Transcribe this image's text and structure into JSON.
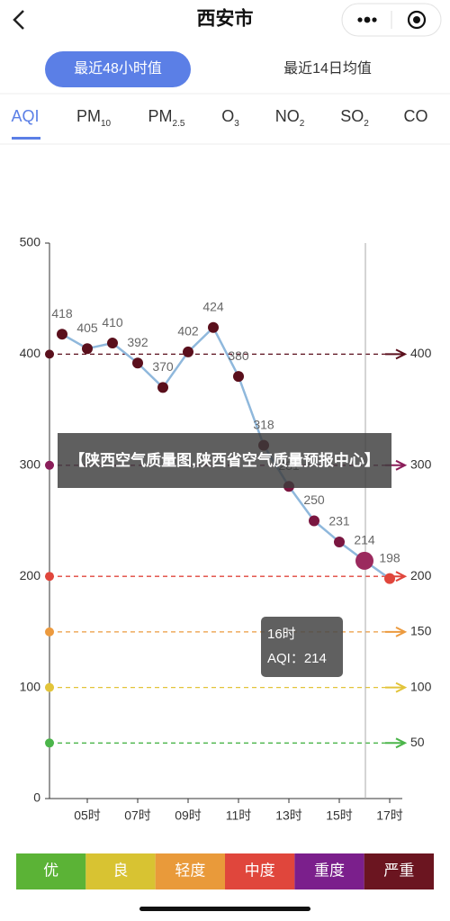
{
  "header": {
    "title": "西安市"
  },
  "tabs": [
    "最近48小时值",
    "最近14日均值"
  ],
  "pollutants": [
    {
      "main": "AQI"
    },
    {
      "main": "PM",
      "sub": "10"
    },
    {
      "main": "PM",
      "sub": "2.5"
    },
    {
      "main": "O",
      "sub": "3"
    },
    {
      "main": "NO",
      "sub": "2"
    },
    {
      "main": "SO",
      "sub": "2"
    },
    {
      "main": "CO"
    }
  ],
  "chart_data": {
    "type": "line",
    "categories": [
      null,
      "05时",
      null,
      "07时",
      null,
      "09时",
      null,
      "11时",
      null,
      "13时",
      null,
      "15时",
      null,
      "17时"
    ],
    "series": [
      {
        "name": "AQI",
        "color": "#8fb8dc",
        "values": [
          418,
          405,
          410,
          392,
          370,
          402,
          424,
          380,
          318,
          281,
          250,
          231,
          214,
          198
        ],
        "colors": [
          "#5a0f1c",
          "#5a0f1c",
          "#5a0f1c",
          "#5a0f1c",
          "#5a0f1c",
          "#5a0f1c",
          "#5a0f1c",
          "#5a0f1c",
          "#5a0f1c",
          "#7a1640",
          "#7a1640",
          "#7a1640",
          "#9b2a5e",
          "#e0463c"
        ]
      }
    ],
    "ylim": [
      0,
      500
    ],
    "yticks": [
      0,
      100,
      200,
      300,
      400,
      500
    ],
    "thresholds": [
      {
        "value": 400,
        "color": "#5a0f1c"
      },
      {
        "value": 300,
        "color": "#8b1e5a"
      },
      {
        "value": 200,
        "color": "#e0463c"
      },
      {
        "value": 150,
        "color": "#ec9a3e"
      },
      {
        "value": 100,
        "color": "#e2c43a"
      },
      {
        "value": 50,
        "color": "#4bb54a"
      }
    ],
    "highlight_index": 12,
    "tooltip": {
      "title": "16时",
      "text": "AQI：214"
    }
  },
  "caption": "【陕西空气质量图,陕西省空气质量预报中心】",
  "levels": [
    {
      "label": "优",
      "color": "#5bb336"
    },
    {
      "label": "良",
      "color": "#d8c332"
    },
    {
      "label": "轻度",
      "color": "#e99a3a"
    },
    {
      "label": "中度",
      "color": "#e0463c"
    },
    {
      "label": "重度",
      "color": "#7b1f8c"
    },
    {
      "label": "严重",
      "color": "#6b1520"
    }
  ]
}
